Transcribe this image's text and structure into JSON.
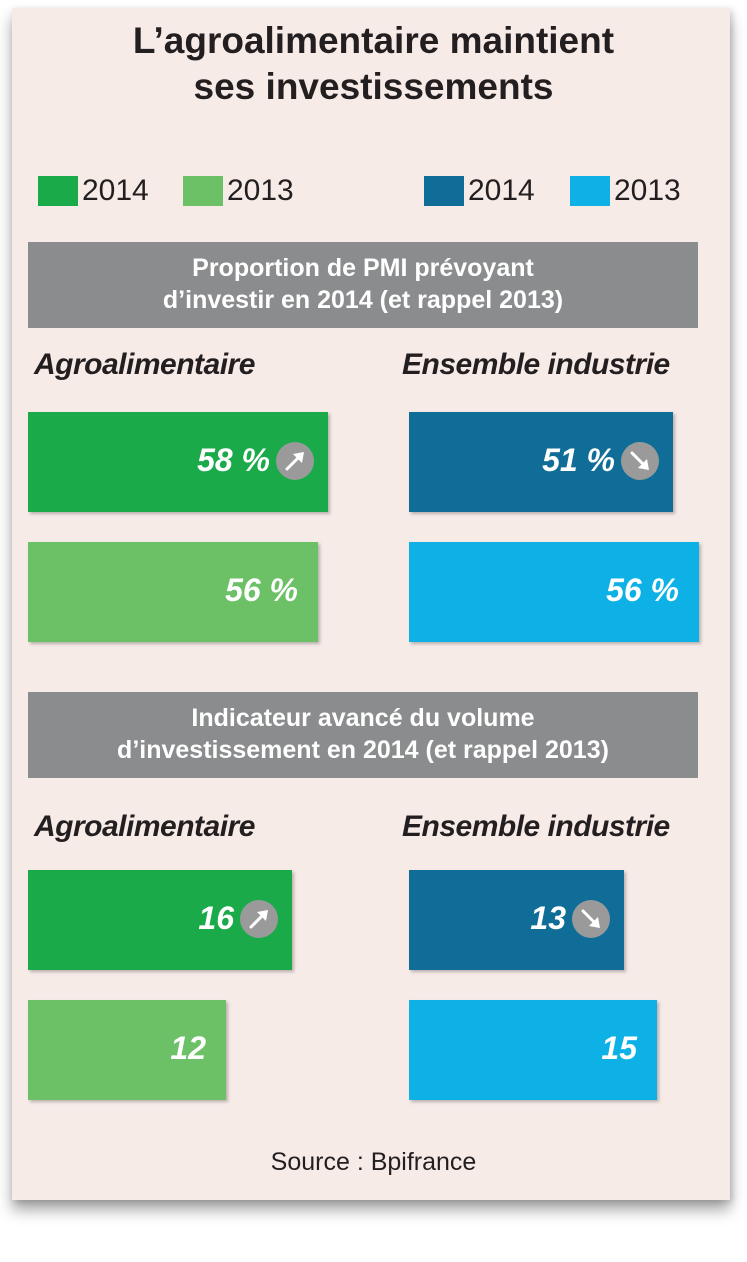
{
  "title_line1": "L’agroalimentaire maintient",
  "title_line2": "ses investissements",
  "colors": {
    "agro_2014": "#1aaa4a",
    "agro_2013": "#6cc167",
    "industrie_2014": "#0f6d98",
    "industrie_2013": "#0db1e6"
  },
  "legend": [
    {
      "label": "2014",
      "color": "#1aaa4a"
    },
    {
      "label": "2013",
      "color": "#6cc167"
    },
    {
      "label": "2014",
      "color": "#0f6d98"
    },
    {
      "label": "2013",
      "color": "#0db1e6"
    }
  ],
  "chart_data": [
    {
      "type": "bar",
      "title_line1": "Proportion de PMI prévoyant",
      "title_line2": "d’investir en 2014 (et rappel 2013)",
      "unit": "%",
      "xlim": [
        0,
        100
      ],
      "groups": [
        {
          "name": "Agroalimentaire",
          "bars": [
            {
              "year": "2014",
              "value": 58,
              "label": "58 %",
              "trend": "up",
              "trend_icon": "arrow-up-right-icon"
            },
            {
              "year": "2013",
              "value": 56,
              "label": "56 %"
            }
          ]
        },
        {
          "name": "Ensemble industrie",
          "bars": [
            {
              "year": "2014",
              "value": 51,
              "label": "51 %",
              "trend": "down",
              "trend_icon": "arrow-down-right-icon"
            },
            {
              "year": "2013",
              "value": 56,
              "label": "56 %"
            }
          ]
        }
      ]
    },
    {
      "type": "bar",
      "title_line1": "Indicateur avancé du volume",
      "title_line2": "d’investissement en 2014 (et rappel 2013)",
      "unit": "",
      "xlim": [
        0,
        26
      ],
      "groups": [
        {
          "name": "Agroalimentaire",
          "bars": [
            {
              "year": "2014",
              "value": 16,
              "label": "16",
              "trend": "up",
              "trend_icon": "arrow-up-right-icon"
            },
            {
              "year": "2013",
              "value": 12,
              "label": "12"
            }
          ]
        },
        {
          "name": "Ensemble industrie",
          "bars": [
            {
              "year": "2014",
              "value": 13,
              "label": "13",
              "trend": "down",
              "trend_icon": "arrow-down-right-icon"
            },
            {
              "year": "2013",
              "value": 15,
              "label": "15"
            }
          ]
        }
      ]
    }
  ],
  "source": "Source : Bpifrance"
}
